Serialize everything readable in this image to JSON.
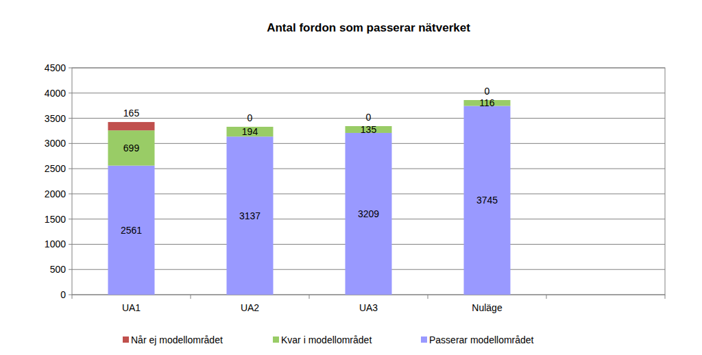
{
  "chart_data": {
    "type": "bar",
    "title": "Antal fordon som passerar nätverket",
    "categories": [
      "UA1",
      "UA2",
      "UA3",
      "Nuläge",
      null
    ],
    "series": [
      {
        "name": "Passerar modellområdet",
        "color": "#9999ff",
        "values": [
          2561,
          3137,
          3209,
          3745,
          null
        ]
      },
      {
        "name": "Kvar i modellområdet",
        "color": "#99cc66",
        "values": [
          699,
          194,
          135,
          116,
          null
        ]
      },
      {
        "name": "Når ej modellområdet",
        "color": "#c0504d",
        "values": [
          165,
          0,
          0,
          0,
          null
        ]
      }
    ],
    "stacked": true,
    "data_labels": true,
    "grid": true,
    "legend": "bottom",
    "ylim": [
      0,
      4500
    ],
    "yticks": [
      0,
      500,
      1000,
      1500,
      2000,
      2500,
      3000,
      3500,
      4000,
      4500
    ]
  }
}
